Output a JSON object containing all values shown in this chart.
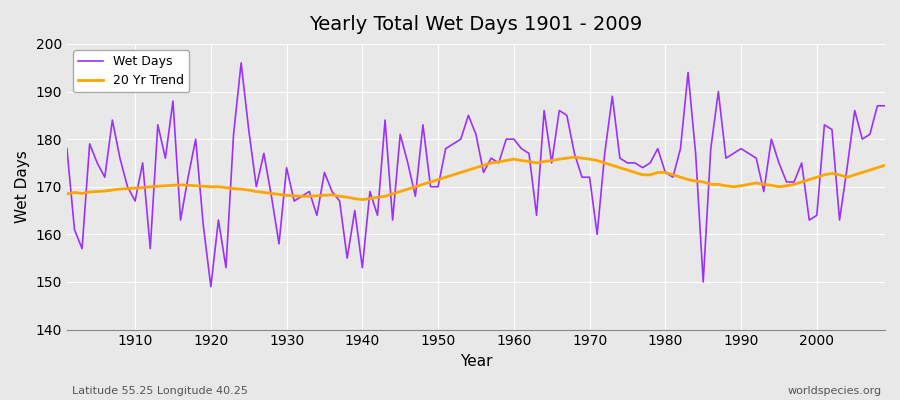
{
  "title": "Yearly Total Wet Days 1901 - 2009",
  "xlabel": "Year",
  "ylabel": "Wet Days",
  "bottom_left_label": "Latitude 55.25 Longitude 40.25",
  "bottom_right_label": "worldspecies.org",
  "xlim": [
    1901,
    2009
  ],
  "ylim": [
    140,
    200
  ],
  "yticks": [
    140,
    150,
    160,
    170,
    180,
    190,
    200
  ],
  "xticks": [
    1910,
    1920,
    1930,
    1940,
    1950,
    1960,
    1970,
    1980,
    1990,
    2000
  ],
  "wet_days_color": "#9B30FF",
  "trend_color": "#FFA500",
  "background_color": "#E8E8E8",
  "grid_color": "#FFFFFF",
  "legend_wet_days": "Wet Days",
  "legend_trend": "20 Yr Trend",
  "years": [
    1901,
    1902,
    1903,
    1904,
    1905,
    1906,
    1907,
    1908,
    1909,
    1910,
    1911,
    1912,
    1913,
    1914,
    1915,
    1916,
    1917,
    1918,
    1919,
    1920,
    1921,
    1922,
    1923,
    1924,
    1925,
    1926,
    1927,
    1928,
    1929,
    1930,
    1931,
    1932,
    1933,
    1934,
    1935,
    1936,
    1937,
    1938,
    1939,
    1940,
    1941,
    1942,
    1943,
    1944,
    1945,
    1946,
    1947,
    1948,
    1949,
    1950,
    1951,
    1952,
    1953,
    1954,
    1955,
    1956,
    1957,
    1958,
    1959,
    1960,
    1961,
    1962,
    1963,
    1964,
    1965,
    1966,
    1967,
    1968,
    1969,
    1970,
    1971,
    1972,
    1973,
    1974,
    1975,
    1976,
    1977,
    1978,
    1979,
    1980,
    1981,
    1982,
    1983,
    1984,
    1985,
    1986,
    1987,
    1988,
    1989,
    1990,
    1991,
    1992,
    1993,
    1994,
    1995,
    1996,
    1997,
    1998,
    1999,
    2000,
    2001,
    2002,
    2003,
    2004,
    2005,
    2006,
    2007,
    2008,
    2009
  ],
  "wet_days": [
    178,
    161,
    157,
    179,
    175,
    172,
    184,
    176,
    170,
    167,
    175,
    157,
    183,
    176,
    188,
    163,
    172,
    180,
    162,
    149,
    163,
    153,
    181,
    196,
    182,
    170,
    177,
    168,
    158,
    174,
    167,
    168,
    169,
    164,
    173,
    169,
    167,
    155,
    165,
    153,
    169,
    164,
    184,
    163,
    181,
    175,
    168,
    183,
    170,
    170,
    178,
    179,
    180,
    185,
    181,
    173,
    176,
    175,
    180,
    180,
    178,
    177,
    164,
    186,
    175,
    186,
    185,
    177,
    172,
    172,
    160,
    177,
    189,
    176,
    175,
    175,
    174,
    175,
    178,
    173,
    172,
    178,
    194,
    177,
    150,
    178,
    190,
    176,
    177,
    178,
    177,
    176,
    169,
    180,
    175,
    171,
    171,
    175,
    163,
    164,
    183,
    182,
    163,
    174,
    186,
    180,
    181,
    187,
    187
  ],
  "trend_years": [
    1901,
    1902,
    1903,
    1904,
    1905,
    1906,
    1907,
    1908,
    1909,
    1910,
    1911,
    1912,
    1913,
    1914,
    1915,
    1916,
    1917,
    1918,
    1919,
    1920,
    1921,
    1922,
    1923,
    1924,
    1925,
    1926,
    1927,
    1928,
    1929,
    1930,
    1931,
    1932,
    1933,
    1934,
    1935,
    1936,
    1937,
    1938,
    1939,
    1940,
    1941,
    1942,
    1943,
    1944,
    1945,
    1946,
    1947,
    1948,
    1949,
    1950,
    1951,
    1952,
    1953,
    1954,
    1955,
    1956,
    1957,
    1958,
    1959,
    1960,
    1961,
    1962,
    1963,
    1964,
    1965,
    1966,
    1967,
    1968,
    1969,
    1970,
    1971,
    1972,
    1973,
    1974,
    1975,
    1976,
    1977,
    1978,
    1979,
    1980,
    1981,
    1982,
    1983,
    1984,
    1985,
    1986,
    1987,
    1988,
    1989,
    1990,
    1991,
    1992,
    1993,
    1994,
    1995,
    1996,
    1997,
    1998,
    1999,
    2000,
    2001,
    2002,
    2003,
    2004,
    2005,
    2006,
    2007,
    2008,
    2009
  ],
  "trend_values": [
    168.5,
    168.8,
    168.6,
    168.9,
    169.0,
    169.1,
    169.3,
    169.5,
    169.6,
    169.7,
    169.8,
    170.0,
    170.1,
    170.2,
    170.3,
    170.4,
    170.3,
    170.2,
    170.1,
    170.0,
    170.0,
    169.8,
    169.6,
    169.5,
    169.3,
    169.0,
    168.8,
    168.6,
    168.4,
    168.2,
    168.1,
    168.0,
    168.0,
    168.1,
    168.2,
    168.3,
    168.0,
    167.8,
    167.5,
    167.3,
    167.5,
    167.8,
    168.0,
    168.5,
    169.0,
    169.5,
    170.0,
    170.5,
    171.0,
    171.5,
    172.0,
    172.5,
    173.0,
    173.5,
    174.0,
    174.5,
    175.0,
    175.2,
    175.5,
    175.8,
    175.5,
    175.3,
    175.0,
    175.3,
    175.5,
    175.8,
    176.0,
    176.2,
    176.0,
    175.8,
    175.5,
    175.0,
    174.5,
    174.0,
    173.5,
    173.0,
    172.5,
    172.5,
    173.0,
    173.0,
    172.5,
    172.0,
    171.5,
    171.2,
    171.0,
    170.5,
    170.5,
    170.2,
    170.0,
    170.2,
    170.5,
    170.8,
    170.5,
    170.3,
    170.0,
    170.2,
    170.5,
    171.0,
    171.5,
    172.0,
    172.5,
    172.8,
    172.5,
    172.0,
    172.5,
    173.0,
    173.5,
    174.0,
    174.5
  ]
}
